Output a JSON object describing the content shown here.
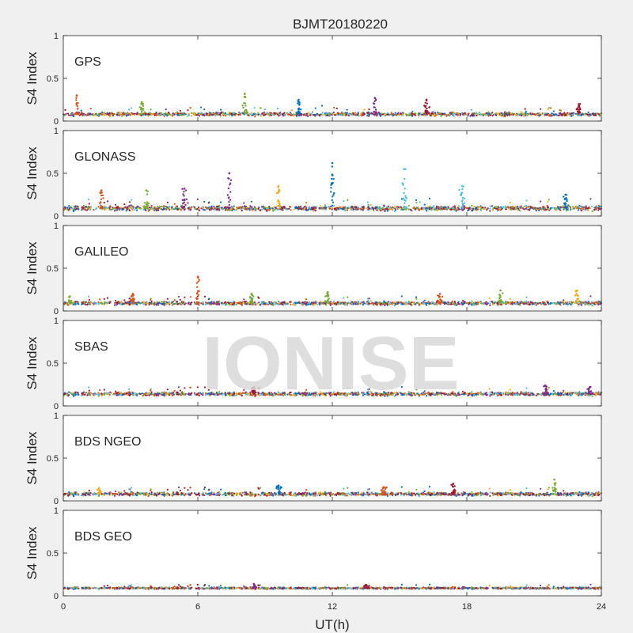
{
  "figure": {
    "title": "BJMT20180220",
    "xlabel": "UT(h)",
    "watermark": "IONISE"
  },
  "colors": [
    "#0072BD",
    "#D95319",
    "#EDB120",
    "#7E2F8E",
    "#77AC30",
    "#4DBEEE",
    "#A2142F"
  ],
  "chart_data": [
    {
      "type": "scatter",
      "panel_label": "GPS",
      "ylabel": "S4 Index",
      "xlim": [
        0,
        24
      ],
      "ylim": [
        0,
        1
      ],
      "xticks": [
        0,
        6,
        12,
        18,
        24
      ],
      "yticks": [
        0,
        0.5,
        1
      ],
      "show_xtick_labels": false,
      "baseline_mean": 0.08,
      "baseline_spread": 0.03,
      "spikes": [
        [
          0.6,
          0.3
        ],
        [
          3.5,
          0.22
        ],
        [
          8.1,
          0.32
        ],
        [
          10.5,
          0.25
        ],
        [
          13.9,
          0.27
        ],
        [
          16.2,
          0.25
        ],
        [
          23.0,
          0.2
        ]
      ]
    },
    {
      "type": "scatter",
      "panel_label": "GLONASS",
      "ylabel": "S4 Index",
      "xlim": [
        0,
        24
      ],
      "ylim": [
        0,
        1
      ],
      "xticks": [
        0,
        6,
        12,
        18,
        24
      ],
      "yticks": [
        0,
        0.5,
        1
      ],
      "show_xtick_labels": false,
      "baseline_mean": 0.09,
      "baseline_spread": 0.04,
      "spikes": [
        [
          1.7,
          0.3
        ],
        [
          3.7,
          0.3
        ],
        [
          5.4,
          0.32
        ],
        [
          7.4,
          0.5
        ],
        [
          9.6,
          0.35
        ],
        [
          12.0,
          0.62
        ],
        [
          15.2,
          0.55
        ],
        [
          17.8,
          0.35
        ],
        [
          22.4,
          0.25
        ]
      ]
    },
    {
      "type": "scatter",
      "panel_label": "GALILEO",
      "ylabel": "S4 Index",
      "xlim": [
        0,
        24
      ],
      "ylim": [
        0,
        1
      ],
      "xticks": [
        0,
        6,
        12,
        18,
        24
      ],
      "yticks": [
        0,
        0.5,
        1
      ],
      "show_xtick_labels": false,
      "baseline_mean": 0.09,
      "baseline_spread": 0.03,
      "spikes": [
        [
          0.3,
          0.17
        ],
        [
          3.1,
          0.2
        ],
        [
          6.0,
          0.4
        ],
        [
          8.4,
          0.2
        ],
        [
          11.8,
          0.22
        ],
        [
          16.8,
          0.2
        ],
        [
          19.5,
          0.24
        ],
        [
          22.9,
          0.24
        ]
      ]
    },
    {
      "type": "scatter",
      "panel_label": "SBAS",
      "ylabel": "S4 Index",
      "xlim": [
        0,
        24
      ],
      "ylim": [
        0,
        1
      ],
      "xticks": [
        0,
        6,
        12,
        18,
        24
      ],
      "yticks": [
        0,
        0.5,
        1
      ],
      "show_xtick_labels": false,
      "baseline_mean": 0.14,
      "baseline_spread": 0.03,
      "spikes": [
        [
          8.5,
          0.22
        ],
        [
          21.5,
          0.24
        ],
        [
          23.5,
          0.22
        ]
      ]
    },
    {
      "type": "scatter",
      "panel_label": "BDS NGEO",
      "ylabel": "S4 Index",
      "xlim": [
        0,
        24
      ],
      "ylim": [
        0,
        1
      ],
      "xticks": [
        0,
        6,
        12,
        18,
        24
      ],
      "yticks": [
        0,
        0.5,
        1
      ],
      "show_xtick_labels": false,
      "baseline_mean": 0.08,
      "baseline_spread": 0.03,
      "spikes": [
        [
          1.6,
          0.15
        ],
        [
          9.6,
          0.18
        ],
        [
          14.3,
          0.16
        ],
        [
          17.4,
          0.2
        ],
        [
          21.9,
          0.25
        ]
      ]
    },
    {
      "type": "scatter",
      "panel_label": "BDS GEO",
      "ylabel": "S4 Index",
      "xlim": [
        0,
        24
      ],
      "ylim": [
        0,
        1
      ],
      "xticks": [
        0,
        6,
        12,
        18,
        24
      ],
      "yticks": [
        0,
        0.5,
        1
      ],
      "show_xtick_labels": true,
      "baseline_mean": 0.09,
      "baseline_spread": 0.015,
      "spikes": [
        [
          8.5,
          0.14
        ],
        [
          13.5,
          0.13
        ]
      ]
    }
  ]
}
